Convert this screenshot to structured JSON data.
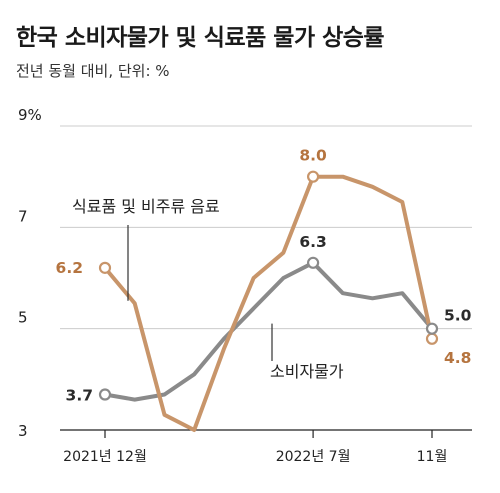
{
  "header": {
    "title": "한국 소비자물가 및 식료품 물가 상승률",
    "subtitle": "전년 동월 대비, 단위: %"
  },
  "colors": {
    "food": "#c8956a",
    "food_text": "#b5743f",
    "cpi": "#8a8a8a",
    "cpi_text": "#2b2b2b",
    "grid": "#cccccc",
    "axis": "#222222"
  },
  "chart_data": {
    "type": "line",
    "title": "한국 소비자물가 및 식료품 물가 상승률",
    "subtitle": "전년 동월 대비, 단위: %",
    "x": [
      "2021-12",
      "2022-01",
      "2022-02",
      "2022-03",
      "2022-04",
      "2022-05",
      "2022-06",
      "2022-07",
      "2022-08",
      "2022-09",
      "2022-10",
      "2022-11"
    ],
    "ylim": [
      3,
      9
    ],
    "y_ticks": [
      3,
      5,
      7,
      9
    ],
    "y_tick_labels": [
      "3",
      "5",
      "7",
      "9%"
    ],
    "x_tick_labels": [
      {
        "x": "2021-12",
        "label": "2021년 12월"
      },
      {
        "x": "2022-07",
        "label": "2022년 7월"
      },
      {
        "x": "2022-11",
        "label": "11월"
      }
    ],
    "grid": "horizontal",
    "series": [
      {
        "name": "식료품 및 비주류 음료",
        "color": "#c8956a",
        "values": [
          6.2,
          5.5,
          3.3,
          3.0,
          4.6,
          6.0,
          6.5,
          8.0,
          8.0,
          7.8,
          7.5,
          4.8
        ]
      },
      {
        "name": "소비자물가",
        "color": "#8a8a8a",
        "values": [
          3.7,
          3.6,
          3.7,
          4.1,
          4.8,
          5.4,
          6.0,
          6.3,
          5.7,
          5.6,
          5.7,
          5.0
        ]
      }
    ],
    "annotations": [
      {
        "series": 0,
        "x": "2021-12",
        "text": "6.2"
      },
      {
        "series": 0,
        "x": "2022-07",
        "text": "8.0"
      },
      {
        "series": 0,
        "x": "2022-11",
        "text": "4.8"
      },
      {
        "series": 1,
        "x": "2021-12",
        "text": "3.7"
      },
      {
        "series": 1,
        "x": "2022-07",
        "text": "6.3"
      },
      {
        "series": 1,
        "x": "2022-11",
        "text": "5.0"
      }
    ]
  }
}
